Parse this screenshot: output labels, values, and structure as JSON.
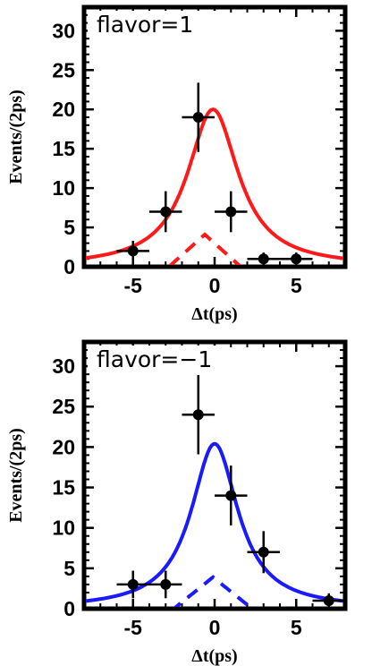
{
  "chart_data": [
    {
      "type": "scatter",
      "title": "",
      "annotation": "flavor=1",
      "xlabel": "Δt(ps)",
      "ylabel": "Events/(2ps)",
      "xlim": [
        -8,
        8
      ],
      "ylim": [
        0,
        33
      ],
      "xticks": [
        -5,
        0,
        5
      ],
      "yticks": [
        0,
        5,
        10,
        15,
        20,
        25,
        30
      ],
      "xtick_labels": [
        "-5",
        "0",
        "5"
      ],
      "ytick_labels": [
        "0",
        "5",
        "10",
        "15",
        "20",
        "25",
        "30"
      ],
      "grid": false,
      "color": "#ff1a1a",
      "fit": {
        "peak": 20.0,
        "center": -0.1,
        "width": 1.9
      },
      "background": {
        "peak": 4.1,
        "center": -0.6,
        "half_width": 2.2
      },
      "points": [
        {
          "x": -5,
          "y": 2,
          "xerr": 1,
          "yerr": 1.3
        },
        {
          "x": -3,
          "y": 7,
          "xerr": 1,
          "yerr": 2.6
        },
        {
          "x": -1,
          "y": 19,
          "xerr": 1,
          "yerr": 4.4
        },
        {
          "x": 1,
          "y": 7,
          "xerr": 1,
          "yerr": 2.6
        },
        {
          "x": 3,
          "y": 1,
          "xerr": 1,
          "yerr": 0.8
        },
        {
          "x": 5,
          "y": 1,
          "xerr": 1,
          "yerr": 0.8
        }
      ]
    },
    {
      "type": "scatter",
      "title": "",
      "annotation": "flavor=−1",
      "xlabel": "Δt(ps)",
      "ylabel": "Events/(2ps)",
      "xlim": [
        -8,
        8
      ],
      "ylim": [
        0,
        33
      ],
      "xticks": [
        -5,
        0,
        5
      ],
      "yticks": [
        0,
        5,
        10,
        15,
        20,
        25,
        30
      ],
      "xtick_labels": [
        "-5",
        "0",
        "5"
      ],
      "ytick_labels": [
        "0",
        "5",
        "10",
        "15",
        "20",
        "25",
        "30"
      ],
      "grid": false,
      "color": "#1a1aff",
      "fit": {
        "peak": 20.4,
        "center": 0.0,
        "width": 1.75
      },
      "background": {
        "peak": 3.9,
        "center": -0.1,
        "half_width": 2.4
      },
      "points": [
        {
          "x": -5,
          "y": 3,
          "xerr": 1,
          "yerr": 1.7
        },
        {
          "x": -3,
          "y": 3,
          "xerr": 1,
          "yerr": 1.7
        },
        {
          "x": -1,
          "y": 24,
          "xerr": 1,
          "yerr": 4.9
        },
        {
          "x": 1,
          "y": 14,
          "xerr": 1,
          "yerr": 3.7
        },
        {
          "x": 3,
          "y": 7,
          "xerr": 1,
          "yerr": 2.6
        },
        {
          "x": 7,
          "y": 1,
          "xerr": 1,
          "yerr": 0.9
        }
      ]
    }
  ]
}
